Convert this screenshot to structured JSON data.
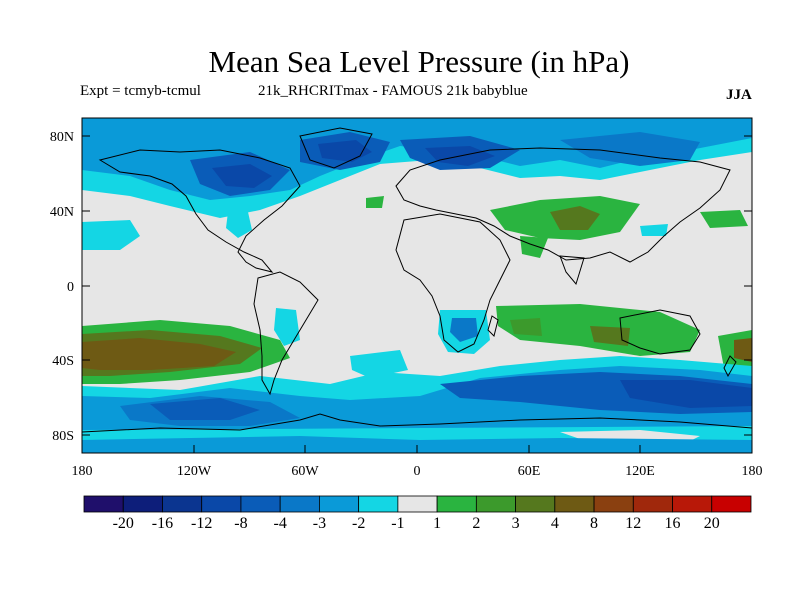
{
  "title": "Mean Sea Level Pressure (in hPa)",
  "subtitle_left": "Expt = tcmyb-tcmul",
  "subtitle_mid": "21k_RHCRITmax - FAMOUS 21k babyblue",
  "season": "JJA",
  "axes": {
    "lat_ticks": [
      "80N",
      "40N",
      "0",
      "40S",
      "80S"
    ],
    "lon_ticks": [
      "180",
      "120W",
      "60W",
      "0",
      "60E",
      "120E",
      "180"
    ]
  },
  "colorbar": {
    "colors": [
      "#1f0f6b",
      "#0d1e7a",
      "#0b3590",
      "#0a48a8",
      "#0a5cb8",
      "#0a78c8",
      "#0a9ad8",
      "#14d6e4",
      "#e6e6e6",
      "#2ab440",
      "#3c9a2c",
      "#55781e",
      "#6e5a14",
      "#8a4010",
      "#a0280c",
      "#b81808",
      "#c80000"
    ],
    "labels": [
      "-20",
      "-16",
      "-12",
      "-8",
      "-4",
      "-3",
      "-2",
      "-1",
      "1",
      "2",
      "3",
      "4",
      "8",
      "12",
      "16",
      "20"
    ]
  },
  "palette": {
    "neutral": "#e6e6e6",
    "cyan": "#14d6e4",
    "light_blue": "#0a9ad8",
    "mid_blue": "#0a78c8",
    "blue": "#0a5cb8",
    "dark_blue": "#0a48a8",
    "green": "#2ab440",
    "dark_green": "#3c9a2c",
    "olive": "#55781e",
    "brown": "#6e5a14"
  }
}
